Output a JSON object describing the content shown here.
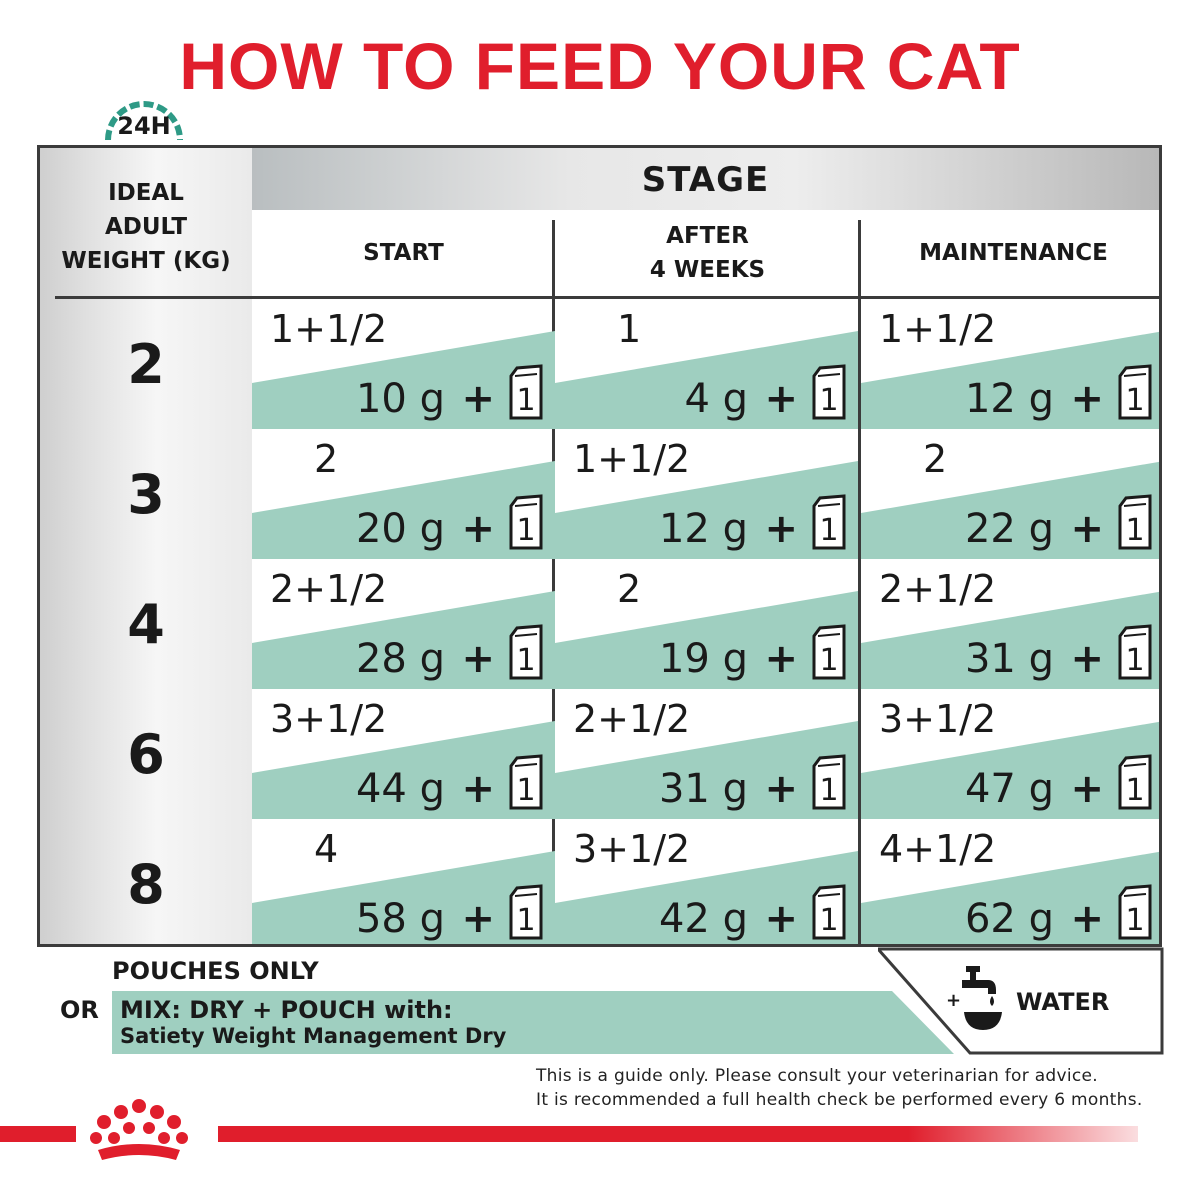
{
  "title": "HOW TO FEED YOUR CAT",
  "badge": "24H",
  "header": {
    "weight_label": [
      "IDEAL",
      "ADULT",
      "WEIGHT (KG)"
    ],
    "stage_label": "STAGE",
    "stages": [
      [
        "START"
      ],
      [
        "AFTER",
        "4 WEEKS"
      ],
      [
        "MAINTENANCE"
      ]
    ]
  },
  "rows": [
    {
      "weight": "2",
      "cells": [
        {
          "pouch": "1+1/2",
          "dry": "10 g"
        },
        {
          "pouch": "1",
          "dry": "4 g"
        },
        {
          "pouch": "1+1/2",
          "dry": "12 g"
        }
      ]
    },
    {
      "weight": "3",
      "cells": [
        {
          "pouch": "2",
          "dry": "20 g"
        },
        {
          "pouch": "1+1/2",
          "dry": "12 g"
        },
        {
          "pouch": "2",
          "dry": "22 g"
        }
      ]
    },
    {
      "weight": "4",
      "cells": [
        {
          "pouch": "2+1/2",
          "dry": "28 g"
        },
        {
          "pouch": "2",
          "dry": "19 g"
        },
        {
          "pouch": "2+1/2",
          "dry": "31 g"
        }
      ]
    },
    {
      "weight": "6",
      "cells": [
        {
          "pouch": "3+1/2",
          "dry": "44 g"
        },
        {
          "pouch": "2+1/2",
          "dry": "31 g"
        },
        {
          "pouch": "3+1/2",
          "dry": "47 g"
        }
      ]
    },
    {
      "weight": "8",
      "cells": [
        {
          "pouch": "4",
          "dry": "58 g"
        },
        {
          "pouch": "3+1/2",
          "dry": "42 g"
        },
        {
          "pouch": "4+1/2",
          "dry": "62 g"
        }
      ]
    }
  ],
  "plus_sign": "+",
  "pouch_icon_digit": "1",
  "legend": {
    "pouches_only": "POUCHES ONLY",
    "or": "OR",
    "mix": "MIX: DRY + POUCH with:",
    "dry_product": "Satiety Weight Management Dry",
    "water_plus": "+",
    "water": "WATER"
  },
  "disclaimer": [
    "This is a guide only. Please consult your veterinarian for advice.",
    "It is recommended a full health check be performed every 6 months."
  ],
  "colors": {
    "brand_red": "#e01e2c",
    "mint": "#9fcfc0",
    "badge_teal": "#2e9a86",
    "border": "#3b3b3b"
  }
}
